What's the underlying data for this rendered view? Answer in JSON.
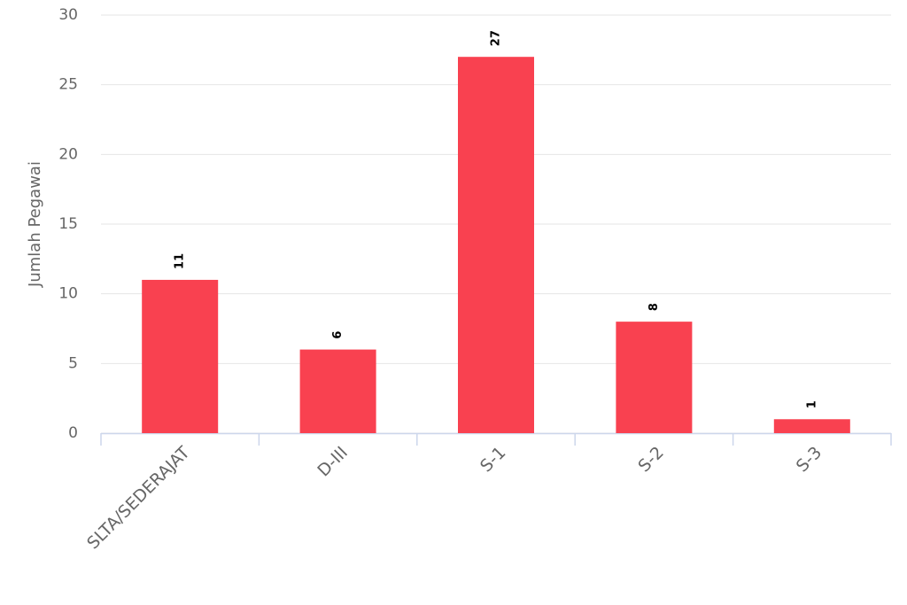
{
  "chart_data": {
    "type": "bar",
    "y_axis_label": "Jumlah Pegawai",
    "categories": [
      "SLTA/SEDERAJAT",
      "D-III",
      "S-1",
      "S-2",
      "S-3"
    ],
    "values": [
      11,
      6,
      27,
      8,
      1
    ],
    "color": "#f94150",
    "ylim": [
      0,
      30
    ],
    "yticks": [
      0,
      5,
      10,
      15,
      20,
      25,
      30
    ],
    "grid": true
  }
}
